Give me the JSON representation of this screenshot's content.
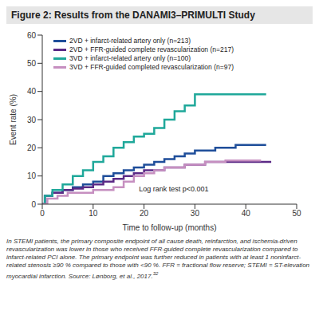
{
  "chart_data": {
    "type": "line",
    "title": "Figure 2: Results from the DANAMI3–PRIMULTI Study",
    "x_label": "Time to follow-up (months)",
    "y_label": "Event rate (%)",
    "annotation": "Log rank test p<0.001",
    "xlim": [
      0,
      50
    ],
    "xticks": [
      0,
      10,
      20,
      30,
      40,
      50
    ],
    "ylim": [
      0,
      60
    ],
    "yticks": [
      0,
      10,
      20,
      30,
      40,
      50,
      60
    ],
    "grid": false,
    "legend": "upper left",
    "line_style": "step",
    "series": [
      {
        "name": "2VD + infarct-related artery only (n=213)",
        "color": "#1f4e9a",
        "x": [
          0,
          0.5,
          2,
          4,
          6,
          8,
          10,
          12,
          14,
          16,
          18,
          20,
          22,
          24,
          26,
          28,
          30,
          34,
          38,
          44
        ],
        "values": [
          0,
          3,
          4,
          5,
          6,
          7,
          8,
          10,
          11,
          12,
          13,
          14,
          15,
          16,
          17,
          18,
          19,
          20,
          21,
          21
        ]
      },
      {
        "name": "2VD + FFR-guided complete revascularization (n=217)",
        "color": "#5b2a86",
        "x": [
          0,
          0.5,
          2,
          4,
          6,
          8,
          10,
          12,
          14,
          16,
          18,
          20,
          24,
          28,
          32,
          45
        ],
        "values": [
          0,
          3,
          4,
          5,
          5.5,
          6,
          7,
          8,
          9,
          10,
          11,
          12,
          13,
          14,
          15,
          15
        ]
      },
      {
        "name": "3VD + infarct-related artery only (n=100)",
        "color": "#1fa89a",
        "x": [
          0,
          0.5,
          2,
          4,
          6,
          8,
          10,
          12,
          14,
          16,
          18,
          20,
          22,
          24,
          26,
          28,
          30,
          44
        ],
        "values": [
          0,
          3,
          5,
          7,
          10,
          12,
          15,
          17,
          20,
          22,
          24,
          25,
          27,
          30,
          33,
          35,
          39,
          39
        ]
      },
      {
        "name": "3VD + FFR-guided completed revascularization (n=97)",
        "color": "#c68fc0",
        "x": [
          0,
          1,
          3,
          5,
          8,
          10,
          12,
          14,
          16,
          18,
          20,
          22,
          24,
          28,
          32,
          36,
          43
        ],
        "values": [
          0,
          2,
          3,
          4,
          4,
          5,
          5,
          6,
          8,
          10,
          11,
          12,
          13,
          14,
          15,
          15.5,
          15.5
        ]
      }
    ],
    "caption": "In STEMI patients, the primary composite endpoint of all cause death, reinfarction, and ischemia-driven revascularization was lower in those who received FFR-guided complete revascularization compared to infarct-related PCI alone. The primary endpoint was further reduced in patients with at least 1 noninfarct-related stenosis ≥90 % compared to those with <90 %. FFR = fractional flow reserve; STEMI = ST-elevation myocardial infarction.",
    "source": "Source: Lønborg, et al., 2017.",
    "source_ref": "32"
  }
}
